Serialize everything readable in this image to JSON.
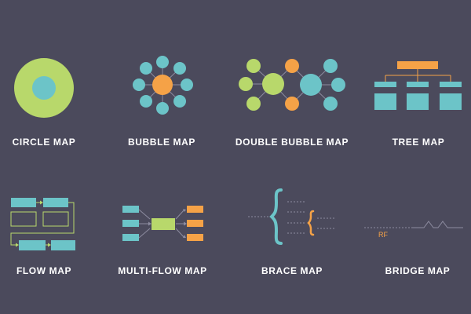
{
  "maps": [
    {
      "id": "circle",
      "label": "CIRCLE MAP"
    },
    {
      "id": "bubble",
      "label": "BUBBLE MAP"
    },
    {
      "id": "double-bubble",
      "label": "DOUBLE BUBBLE MAP"
    },
    {
      "id": "tree",
      "label": "TREE MAP"
    },
    {
      "id": "flow",
      "label": "FLOW MAP"
    },
    {
      "id": "multi-flow",
      "label": "MULTI-FLOW MAP"
    },
    {
      "id": "brace",
      "label": "BRACE MAP"
    },
    {
      "id": "bridge",
      "label": "BRIDGE MAP"
    }
  ],
  "bridge_annotation": "RF",
  "colors": {
    "background": "#4b4a5c",
    "teal": "#6cc4c8",
    "green": "#b8d86b",
    "orange": "#f5a247",
    "label": "#ffffff",
    "connector": "#8d8ca0"
  }
}
